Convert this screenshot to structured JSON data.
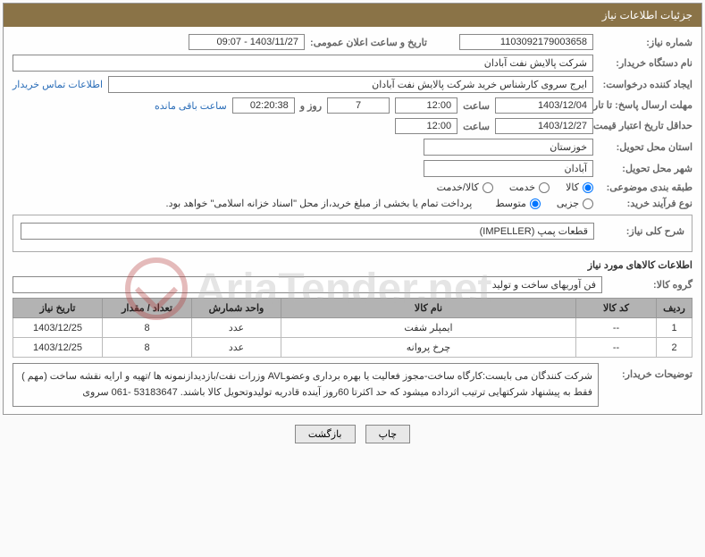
{
  "header": {
    "title": "جزئیات اطلاعات نیاز"
  },
  "fields": {
    "req_no_label": "شماره نیاز:",
    "req_no": "1103092179003658",
    "announce_label": "تاریخ و ساعت اعلان عمومی:",
    "announce_val": "1403/11/27 - 09:07",
    "buyer_org_label": "نام دستگاه خریدار:",
    "buyer_org": "شرکت پالایش نفت آبادان",
    "creator_label": "ایجاد کننده درخواست:",
    "creator": "ایرج سروی کارشناس خرید شرکت پالایش نفت آبادان",
    "contact_link": "اطلاعات تماس خریدار",
    "deadline_label": "مهلت ارسال پاسخ: تا تاریخ:",
    "deadline_date": "1403/12/04",
    "time_label": "ساعت",
    "deadline_time": "12:00",
    "days": "7",
    "days_label": "روز و",
    "timer": "02:20:38",
    "remain_label": "ساعت باقی مانده",
    "validity_label": "حداقل تاریخ اعتبار قیمت: تا تاریخ:",
    "validity_date": "1403/12/27",
    "validity_time": "12:00",
    "province_label": "استان محل تحویل:",
    "province": "خوزستان",
    "city_label": "شهر محل تحویل:",
    "city": "آبادان",
    "category_label": "طبقه بندی موضوعی:",
    "proc_type_label": "نوع فرآیند خرید:",
    "payment_text": "پرداخت تمام یا بخشی از مبلغ خرید،از محل \"اسناد خزانه اسلامی\" خواهد بود.",
    "radios": {
      "cat_goods": "کالا",
      "cat_service": "خدمت",
      "cat_both": "کالا/خدمت",
      "proc_small": "جزیی",
      "proc_medium": "متوسط"
    },
    "desc_label": "شرح کلی نیاز:",
    "desc_val": "قطعات پمپ (IMPELLER)",
    "items_title": "اطلاعات کالاهای مورد نیاز",
    "group_label": "گروه کالا:",
    "group_val": "فن آوریهای ساخت و تولید",
    "note_label": "توضیحات خریدار:",
    "note_text": "شرکت کنندگان می بایست:کارگاه ساخت-مجوز فعالیت یا بهره برداری وعضوAVL وزرات نفت/بازدیدازنمونه ها /تهیه و ارایه نقشه ساخت (مهم ) فقط به پیشنهاد شرکتهایی ترتیب اثرداده میشود که حد اکثرتا 60روز آینده قادریه تولیدوتحویل کالا باشند. 53183647 -061 سروی"
  },
  "table": {
    "headers": {
      "row": "ردیف",
      "code": "کد کالا",
      "name": "نام کالا",
      "unit": "واحد شمارش",
      "qty": "تعداد / مقدار",
      "date": "تاریخ نیاز"
    },
    "rows": [
      {
        "idx": "1",
        "code": "--",
        "name": "ایمپلر شفت",
        "unit": "عدد",
        "qty": "8",
        "date": "1403/12/25"
      },
      {
        "idx": "2",
        "code": "--",
        "name": "چرخ پروانه",
        "unit": "عدد",
        "qty": "8",
        "date": "1403/12/25"
      }
    ]
  },
  "buttons": {
    "print": "چاپ",
    "back": "بازگشت"
  },
  "watermark": "AriaTender.net"
}
